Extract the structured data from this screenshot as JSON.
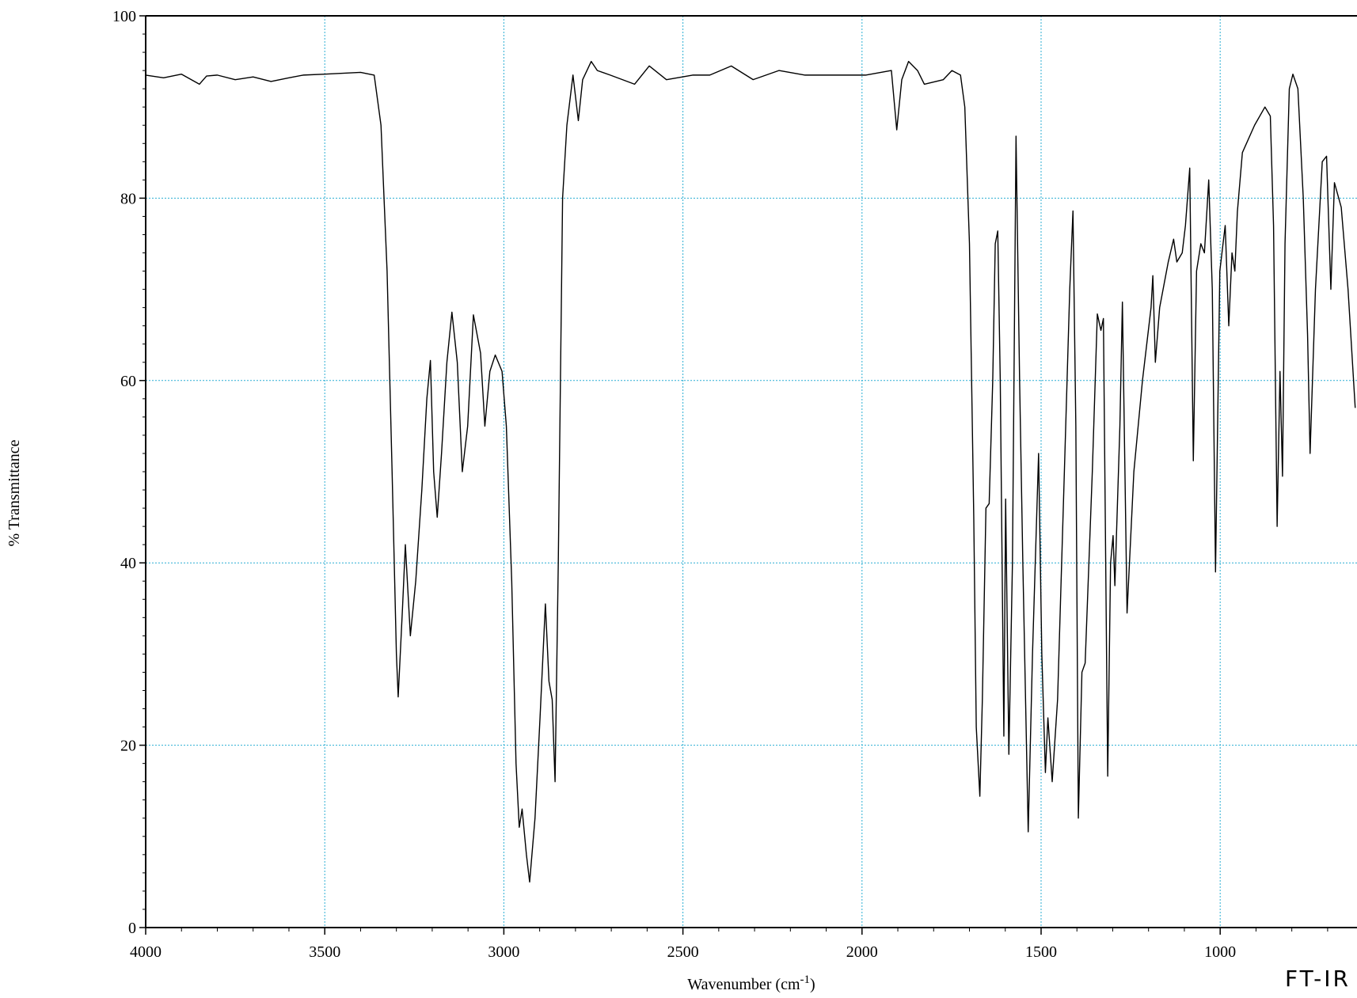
{
  "chart_data": {
    "type": "line",
    "annotation": "FT-IR",
    "xlabel": {
      "text": "Wavenumber (cm",
      "sup": "-1",
      "end": ")"
    },
    "ylabel": "% Transmittance",
    "color": "#000000",
    "grid": true,
    "grid_color": "#2aaed3",
    "xlim": [
      4000,
      618
    ],
    "ylim": [
      0,
      100
    ],
    "xticks": [
      4000,
      3500,
      3000,
      2500,
      2000,
      1500,
      1000
    ],
    "yticks": [
      0,
      20,
      40,
      60,
      80,
      100
    ],
    "xminorticks": [
      3900,
      3800,
      3700,
      3600,
      3400,
      3300,
      3200,
      3100,
      2900,
      2800,
      2700,
      2600,
      2400,
      2300,
      2200,
      2100,
      1900,
      1800,
      1700,
      1600,
      1400,
      1300,
      1200,
      1100,
      900,
      800,
      700
    ],
    "yminorticks": [
      2,
      4,
      6,
      8,
      10,
      12,
      14,
      16,
      18,
      22,
      24,
      26,
      28,
      30,
      32,
      34,
      36,
      38,
      42,
      44,
      46,
      48,
      50,
      52,
      54,
      56,
      58,
      62,
      64,
      66,
      68,
      70,
      72,
      74,
      76,
      78,
      82,
      84,
      86,
      88,
      90,
      92,
      94,
      96,
      98
    ],
    "x": [
      4000,
      3950,
      3900,
      3850,
      3830,
      3800,
      3750,
      3700,
      3650,
      3600,
      3560,
      3500,
      3400,
      3362,
      3343,
      3326,
      3312,
      3300,
      3295,
      3283,
      3275,
      3261,
      3246,
      3229,
      3215,
      3205,
      3196,
      3186,
      3174,
      3159,
      3145,
      3130,
      3116,
      3101,
      3085,
      3065,
      3053,
      3039,
      3024,
      3005,
      2993,
      2978,
      2966,
      2957,
      2949,
      2937,
      2928,
      2913,
      2899,
      2884,
      2874,
      2865,
      2857,
      2848,
      2836,
      2824,
      2807,
      2792,
      2780,
      2756,
      2739,
      2703,
      2635,
      2594,
      2546,
      2473,
      2425,
      2365,
      2304,
      2232,
      2159,
      2087,
      1990,
      1918,
      1903,
      1889,
      1870,
      1845,
      1826,
      1773,
      1749,
      1725,
      1713,
      1700,
      1688,
      1681,
      1671,
      1664,
      1654,
      1645,
      1635,
      1628,
      1621,
      1614,
      1604,
      1599,
      1590,
      1580,
      1570,
      1560,
      1551,
      1536,
      1524,
      1507,
      1498,
      1488,
      1481,
      1469,
      1454,
      1435,
      1420,
      1411,
      1403,
      1396,
      1386,
      1377,
      1357,
      1343,
      1333,
      1326,
      1314,
      1306,
      1299,
      1294,
      1280,
      1273,
      1260,
      1241,
      1217,
      1193,
      1188,
      1181,
      1169,
      1145,
      1130,
      1121,
      1106,
      1097,
      1085,
      1075,
      1066,
      1054,
      1044,
      1032,
      1022,
      1013,
      1001,
      986,
      976,
      967,
      959,
      952,
      938,
      904,
      875,
      860,
      851,
      841,
      833,
      826,
      819,
      807,
      797,
      783,
      768,
      756,
      749,
      734,
      715,
      703,
      691,
      681,
      662,
      643,
      623
    ],
    "values": [
      93.5,
      93.2,
      93.6,
      92.5,
      93.4,
      93.5,
      93,
      93.3,
      92.8,
      93.2,
      93.5,
      93.6,
      93.8,
      93.5,
      88,
      72,
      50,
      30,
      25.3,
      35,
      42,
      32,
      38,
      48,
      58,
      62.2,
      50,
      45,
      52,
      62,
      67.5,
      62,
      50,
      55,
      67.2,
      63,
      55,
      61,
      62.8,
      61,
      55,
      38,
      18,
      11,
      13,
      8,
      5,
      12,
      23,
      35.5,
      27,
      25,
      16,
      40,
      80,
      88,
      93.5,
      88.5,
      93,
      95,
      94,
      93.5,
      92.5,
      94.5,
      93,
      93.5,
      93.5,
      94.5,
      93,
      94,
      93.5,
      93.5,
      93.5,
      94,
      87.5,
      93,
      95,
      94,
      92.5,
      93,
      94,
      93.5,
      90,
      75,
      45,
      22,
      14.4,
      25,
      46,
      46.5,
      60,
      75,
      76.4,
      60,
      21,
      47,
      19,
      40,
      86.8,
      60,
      40,
      10.5,
      30,
      52,
      30,
      17,
      23,
      16,
      25,
      50,
      70,
      78.6,
      55,
      12,
      28,
      29,
      50,
      67.3,
      65.5,
      66.8,
      16.6,
      40,
      43,
      37.5,
      55,
      68.6,
      34.5,
      50,
      60,
      68,
      71.5,
      62,
      68,
      73,
      75.5,
      73,
      74,
      77,
      83.3,
      51.2,
      72,
      75,
      74,
      82,
      70,
      39,
      72,
      77,
      66,
      74,
      72,
      78.5,
      85,
      88,
      90,
      89,
      77,
      44,
      61,
      49.5,
      75,
      92,
      93.6,
      92,
      80,
      65,
      52,
      70,
      84,
      84.6,
      70,
      81.7,
      79,
      70,
      57
    ]
  }
}
